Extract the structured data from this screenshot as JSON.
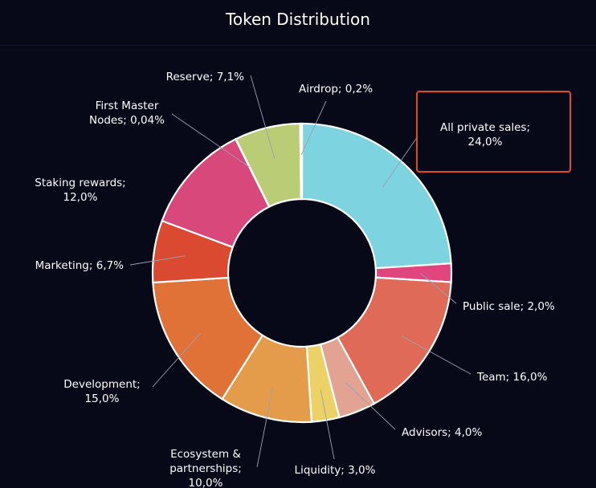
{
  "chart_data": {
    "type": "pie",
    "title": "Token Distribution",
    "donut": true,
    "slices": [
      {
        "label": "All private sales",
        "value": 24.0,
        "display": "24,0%",
        "color": "#7ed3e0"
      },
      {
        "label": "Public sale",
        "value": 2.0,
        "display": "2,0%",
        "color": "#e0457e"
      },
      {
        "label": "Team",
        "value": 16.0,
        "display": "16,0%",
        "color": "#e06a58"
      },
      {
        "label": "Advisors",
        "value": 4.0,
        "display": "4,0%",
        "color": "#e3a393"
      },
      {
        "label": "Liquidity",
        "value": 3.0,
        "display": "3,0%",
        "color": "#ecd266"
      },
      {
        "label": "Ecosystem & partnerships",
        "value": 10.0,
        "display": "10,0%",
        "color": "#e59c4a"
      },
      {
        "label": "Development",
        "value": 15.0,
        "display": "15,0%",
        "color": "#e07238"
      },
      {
        "label": "Marketing",
        "value": 6.7,
        "display": "6,7%",
        "color": "#d94a31"
      },
      {
        "label": "Staking rewards",
        "value": 12.0,
        "display": "12,0%",
        "color": "#d9487a"
      },
      {
        "label": "First Master Nodes",
        "value": 0.04,
        "display": "0,04%",
        "color": "#d9487a"
      },
      {
        "label": "Reserve",
        "value": 7.1,
        "display": "7,1%",
        "color": "#bbcc77"
      },
      {
        "label": "Airdrop",
        "value": 0.2,
        "display": "0,2%",
        "color": "#9fb870"
      }
    ],
    "highlighted": "All private sales"
  }
}
